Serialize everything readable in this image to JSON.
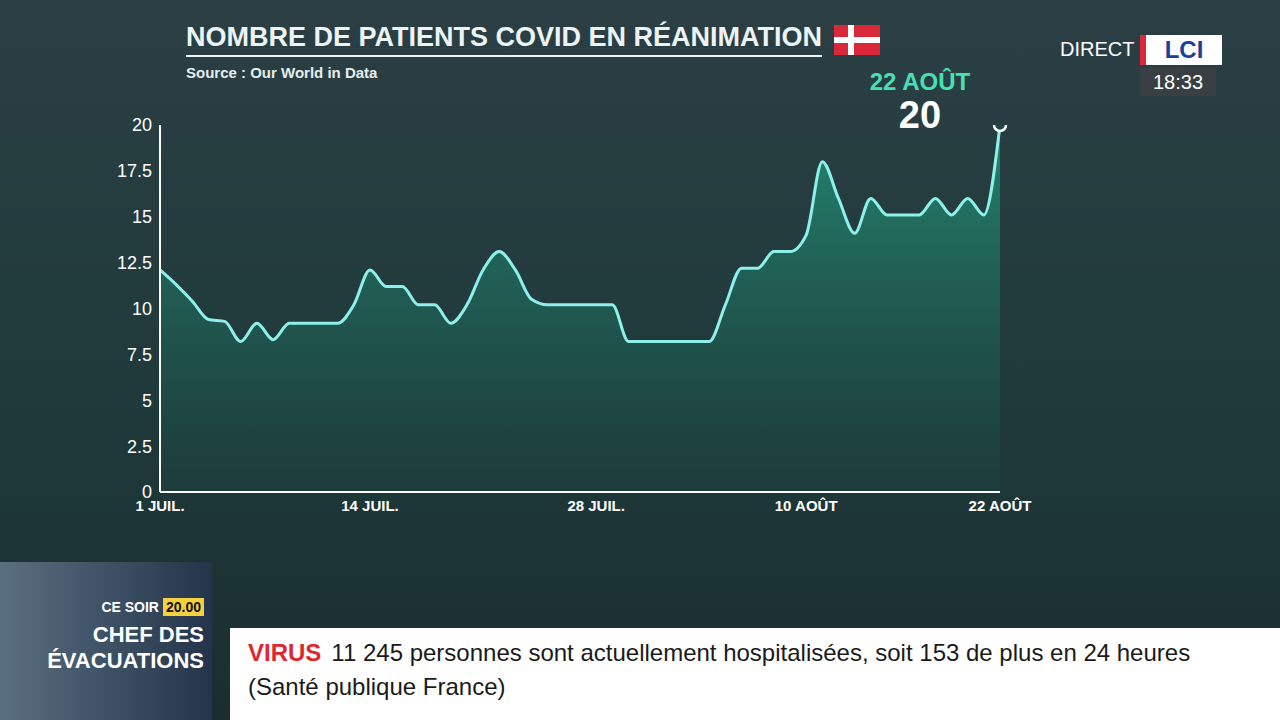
{
  "chart_data": {
    "type": "area",
    "title": "NOMBRE DE PATIENTS COVID EN RÉANIMATION",
    "subtitle": "Source : Our World in Data",
    "categories": [
      "1 JUIL.",
      null,
      null,
      null,
      null,
      null,
      null,
      null,
      null,
      null,
      null,
      null,
      null,
      "14 JUIL.",
      null,
      null,
      null,
      null,
      null,
      null,
      null,
      null,
      null,
      null,
      null,
      null,
      null,
      "28 JUIL.",
      null,
      null,
      null,
      null,
      null,
      null,
      null,
      null,
      null,
      null,
      null,
      null,
      "10 AOÛT",
      null,
      null,
      null,
      null,
      null,
      null,
      null,
      null,
      null,
      null,
      null,
      "22 AOÛT"
    ],
    "values": [
      12.1,
      11.3,
      10.4,
      9.4,
      9.3,
      8.2,
      9.2,
      8.3,
      9.2,
      9.2,
      9.2,
      9.2,
      10.2,
      12.1,
      11.2,
      11.2,
      10.2,
      10.2,
      9.2,
      10.2,
      12.1,
      13.1,
      12.1,
      10.5,
      10.2,
      10.2,
      10.2,
      10.2,
      10.2,
      8.2,
      8.2,
      8.2,
      8.2,
      8.2,
      8.2,
      10.2,
      12.2,
      12.2,
      13.1,
      13.1,
      14.0,
      18.0,
      16.0,
      14.1,
      16.0,
      15.1,
      15.1,
      15.1,
      16.0,
      15.1,
      16.0,
      15.1,
      20
    ],
    "color": "#8ef0ea",
    "ylim": [
      0,
      20
    ],
    "yticks": [
      0,
      2.5,
      5,
      7.5,
      10,
      12.5,
      15,
      17.5,
      20
    ],
    "grid": false,
    "annotation": {
      "label": "22 AOÛT",
      "value": 20
    }
  },
  "broadcast": {
    "live": "DIRECT",
    "channel": "LCI",
    "time": "18:33",
    "ticker": {
      "tag": "VIRUS",
      "text": "11 245 personnes sont actuellement hospitalisées, soit 153 de plus en 24 heures (Santé publique France)"
    },
    "promo": {
      "label": "CE SOIR",
      "time": "20.00",
      "title": "CHEF DES ÉVACUATIONS"
    }
  }
}
